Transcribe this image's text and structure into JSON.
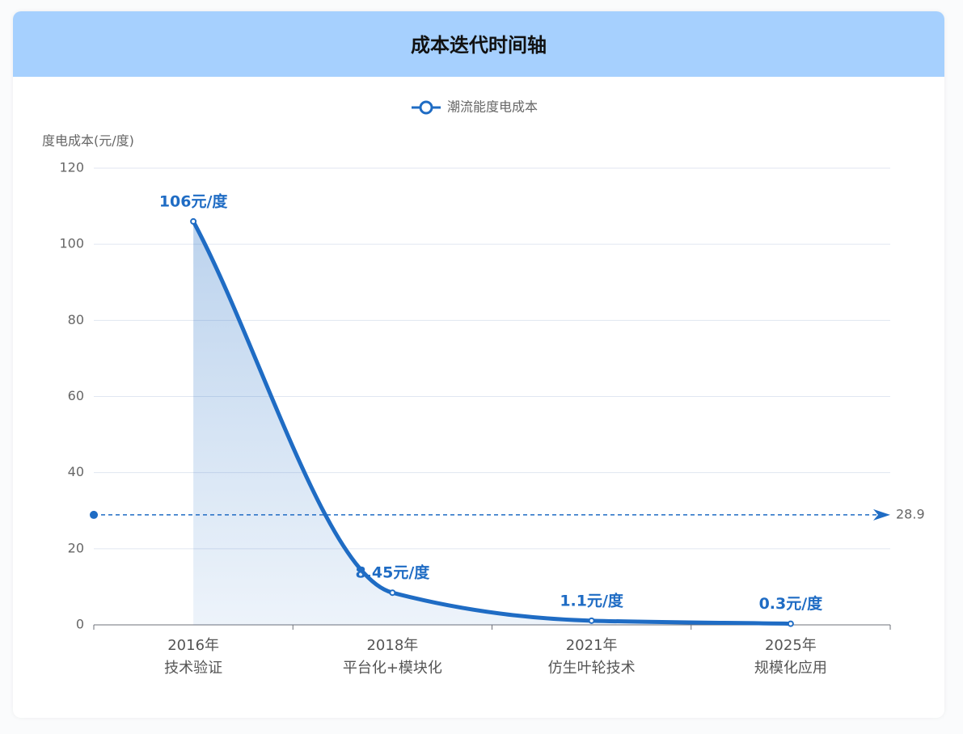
{
  "chart_data": {
    "type": "line",
    "title": "成本迭代时间轴",
    "y_axis_label": "度电成本(元/度)",
    "categories": [
      "2016年\n技术验证",
      "2018年\n平台化+模块化",
      "2021年\n仿生叶轮技术",
      "2025年\n规模化应用"
    ],
    "series": [
      {
        "name": "潮流能度电成本",
        "color": "#1f6cc4",
        "values": [
          106,
          8.45,
          1.1,
          0.3
        ],
        "value_labels": [
          "106元/度",
          "8.45元/度",
          "1.1元/度",
          "0.3元/度"
        ]
      }
    ],
    "mark_line": {
      "value": 28.9
    },
    "ylim": [
      0,
      120
    ],
    "yticks": [
      0,
      20,
      40,
      60,
      80,
      100,
      120
    ],
    "grid": true,
    "smooth": true,
    "area": true
  }
}
